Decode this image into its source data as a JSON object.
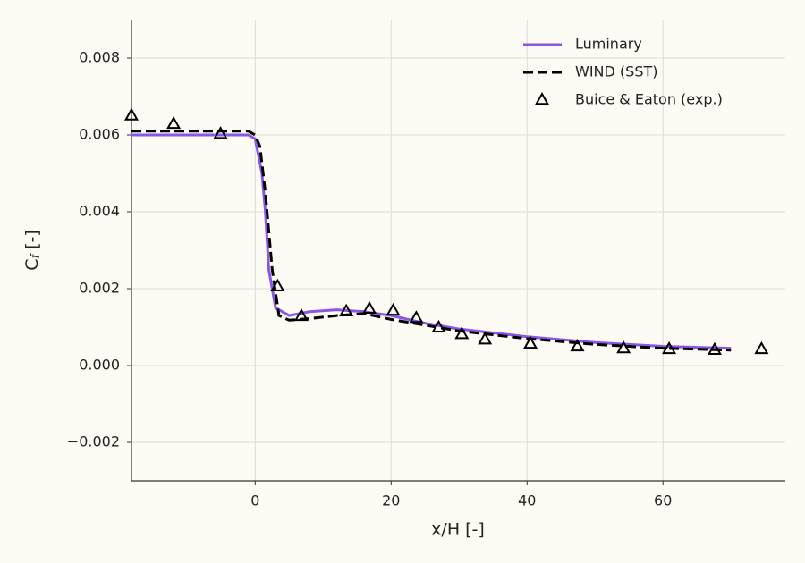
{
  "chart_data": {
    "type": "line",
    "xlabel": "x/H [-]",
    "ylabel": [
      "C",
      "f",
      " [-]"
    ],
    "xlim": [
      -18.2,
      78
    ],
    "ylim": [
      -0.003,
      0.009
    ],
    "xticks": [
      0,
      20,
      40,
      60
    ],
    "yticks": [
      {
        "value": -0.002,
        "label": "−0.002"
      },
      {
        "value": 0,
        "label": "0.000"
      },
      0.002,
      0.004,
      0.006,
      0.008
    ],
    "grid": true,
    "legend": "upper right",
    "series": [
      {
        "name": "Luminary",
        "kind": "line",
        "color": "#8b55e8",
        "dashed": false,
        "x": [
          -18.2,
          -5,
          -1,
          0,
          1,
          1.5,
          2,
          3,
          5,
          8,
          12,
          16,
          20,
          25,
          30,
          40,
          50,
          60,
          70
        ],
        "values": [
          0.006,
          0.006,
          0.006,
          0.0059,
          0.005,
          0.004,
          0.0025,
          0.0015,
          0.0013,
          0.0014,
          0.00145,
          0.0014,
          0.0013,
          0.0011,
          0.00095,
          0.00075,
          0.0006,
          0.0005,
          0.00045
        ]
      },
      {
        "name": "WIND (SST)",
        "kind": "line",
        "color": "#000000",
        "dashed": true,
        "x": [
          -18.2,
          -10,
          -1,
          0,
          0.7,
          1.5,
          2.5,
          3.5,
          5,
          8,
          12,
          16,
          20,
          25,
          30,
          40,
          50,
          60,
          70
        ],
        "values": [
          0.0061,
          0.0061,
          0.0061,
          0.006,
          0.0057,
          0.0045,
          0.0025,
          0.0013,
          0.00118,
          0.00122,
          0.0013,
          0.00135,
          0.0012,
          0.00105,
          0.0009,
          0.0007,
          0.00055,
          0.00045,
          0.0004
        ]
      },
      {
        "name": "Buice & Eaton (exp.)",
        "kind": "scatter",
        "marker": "triangle",
        "color": "#000000",
        "x": [
          -18.2,
          -12,
          -5.1,
          3.3,
          6.8,
          13.4,
          16.8,
          20.3,
          23.7,
          27,
          30.4,
          33.8,
          40.5,
          47.4,
          54.2,
          60.9,
          67.6,
          74.5
        ],
        "values": [
          0.0065,
          0.00628,
          0.00602,
          0.00205,
          0.00128,
          0.0014,
          0.00147,
          0.00142,
          0.00123,
          0.00098,
          0.00081,
          0.00067,
          0.00056,
          0.00049,
          0.00044,
          0.00042,
          0.0004,
          0.00042
        ]
      }
    ]
  }
}
